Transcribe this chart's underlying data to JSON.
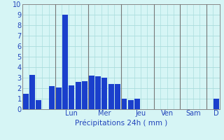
{
  "title": "",
  "xlabel": "Précipitations 24h ( mm )",
  "background_color": "#d6f5f5",
  "bar_color": "#1a3fcc",
  "grid_color": "#aadddd",
  "ylim": [
    0,
    10
  ],
  "yticks": [
    0,
    1,
    2,
    3,
    4,
    5,
    6,
    7,
    8,
    9,
    10
  ],
  "day_labels": [
    "Lun",
    "Mer",
    "Jeu",
    "Ven",
    "Sam",
    "D"
  ],
  "values": [
    1.5,
    3.3,
    0.9,
    0.0,
    2.2,
    2.1,
    9.0,
    2.3,
    2.6,
    2.7,
    3.2,
    3.15,
    3.0,
    2.4,
    2.4,
    1.0,
    0.9,
    1.0,
    0.0,
    0.0,
    0.0,
    0.0,
    0.0,
    0.0,
    0.0,
    0.0,
    0.0,
    0.0,
    0.0,
    1.0
  ],
  "num_bars": 30,
  "bars_per_day": 5,
  "xlabel_color": "#2244bb",
  "tick_color": "#2244bb",
  "axis_color": "#888888",
  "xlabel_fontsize": 7.5,
  "tick_fontsize": 7,
  "separator_color": "#777777"
}
